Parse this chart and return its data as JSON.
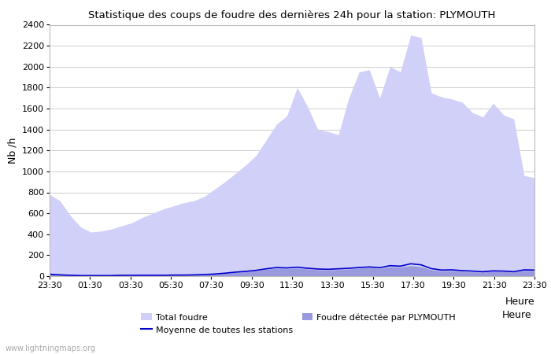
{
  "title": "Statistique des coups de foudre des dernières 24h pour la station: PLYMOUTH",
  "xlabel": "Heure",
  "ylabel": "Nb /h",
  "ylim": [
    0,
    2400
  ],
  "yticks": [
    0,
    200,
    400,
    600,
    800,
    1000,
    1200,
    1400,
    1600,
    1800,
    2000,
    2200,
    2400
  ],
  "xtick_labels": [
    "23:30",
    "01:30",
    "03:30",
    "05:30",
    "07:30",
    "09:30",
    "11:30",
    "13:30",
    "15:30",
    "17:30",
    "19:30",
    "21:30",
    "23:30"
  ],
  "bg_color": "#ffffff",
  "plot_bg_color": "#ffffff",
  "grid_color": "#cccccc",
  "fill_total_color": "#d0d0f8",
  "fill_plymouth_color": "#9999dd",
  "line_color": "#0000cc",
  "watermark": "www.lightningmaps.org",
  "total_foudre": [
    780,
    720,
    580,
    470,
    420,
    430,
    450,
    480,
    510,
    560,
    600,
    640,
    670,
    700,
    720,
    760,
    830,
    900,
    980,
    1060,
    1150,
    1300,
    1450,
    1530,
    1800,
    1620,
    1400,
    1380,
    1350,
    1700,
    1950,
    1970,
    1700,
    2000,
    1950,
    2300,
    2280,
    1750,
    1710,
    1690,
    1660,
    1560,
    1520,
    1650,
    1540,
    1500,
    960,
    940
  ],
  "plymouth_foudre": [
    20,
    15,
    10,
    8,
    8,
    8,
    8,
    10,
    10,
    10,
    10,
    10,
    12,
    12,
    15,
    18,
    22,
    28,
    35,
    42,
    50,
    65,
    75,
    70,
    75,
    68,
    60,
    58,
    62,
    68,
    75,
    82,
    72,
    90,
    85,
    100,
    90,
    60,
    50,
    52,
    45,
    40,
    38,
    45,
    42,
    38,
    55,
    52
  ],
  "moyenne_stations": [
    18,
    12,
    8,
    5,
    5,
    5,
    5,
    8,
    8,
    8,
    8,
    8,
    10,
    10,
    12,
    15,
    20,
    28,
    38,
    45,
    55,
    70,
    82,
    78,
    85,
    75,
    68,
    65,
    70,
    75,
    82,
    88,
    80,
    100,
    95,
    118,
    108,
    72,
    58,
    60,
    52,
    48,
    42,
    50,
    48,
    42,
    60,
    58
  ]
}
